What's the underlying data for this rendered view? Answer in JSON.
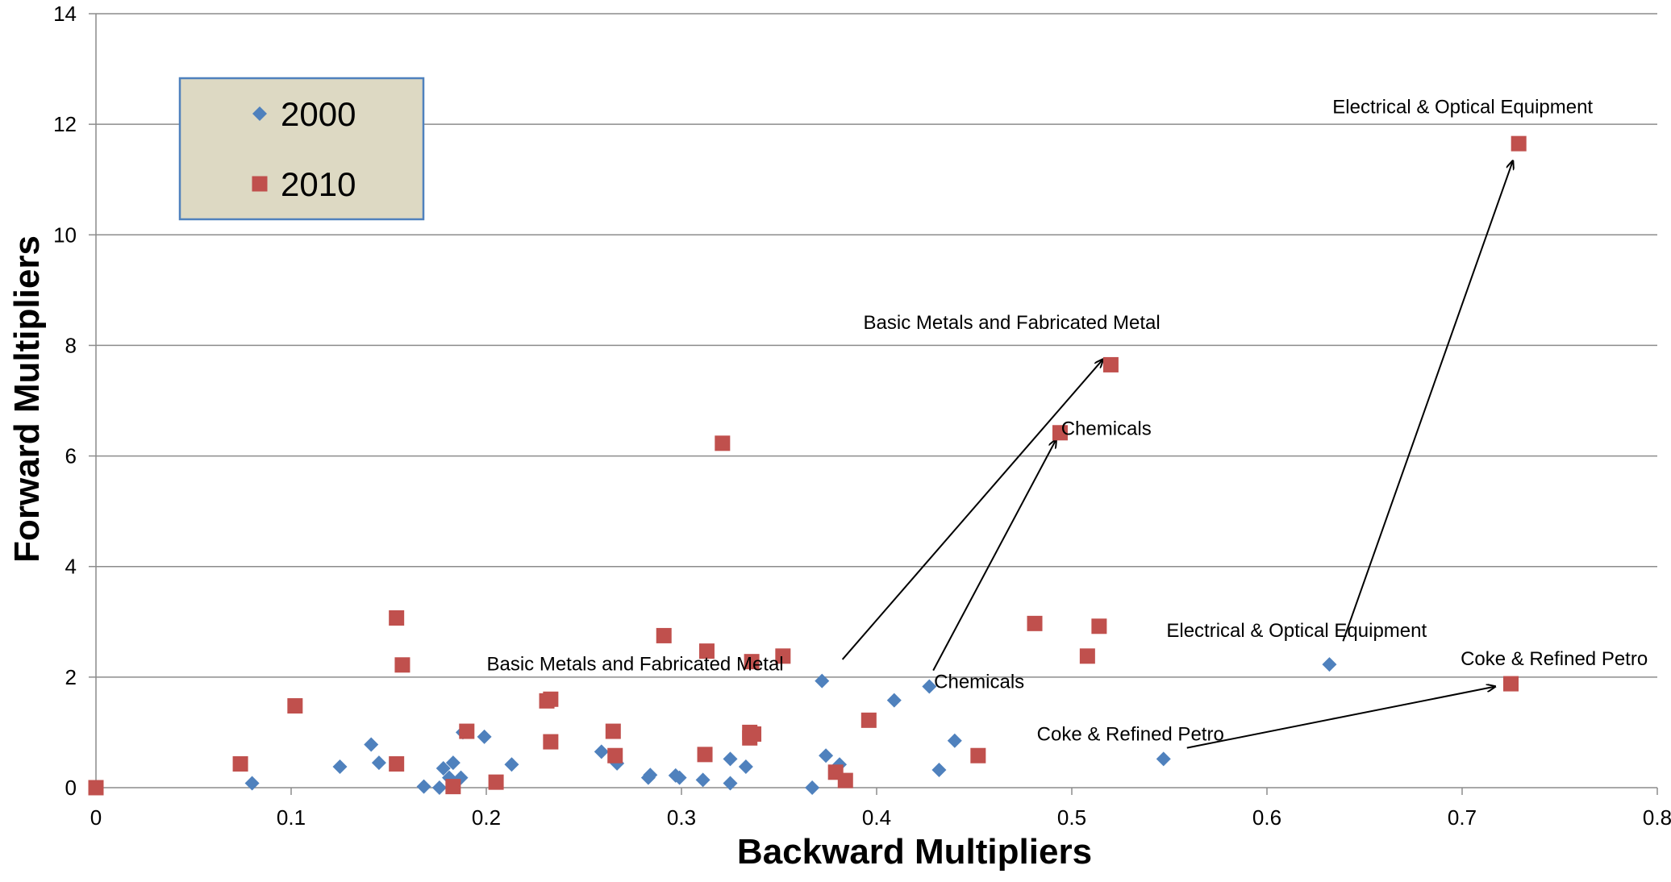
{
  "chart_data": {
    "type": "scatter",
    "title": "",
    "xlabel": "Backward Multipliers",
    "ylabel": "Forward Multipliers",
    "xlim": [
      0,
      0.8
    ],
    "ylim": [
      0,
      14
    ],
    "x_ticks": [
      0,
      0.1,
      0.2,
      0.3,
      0.4,
      0.5,
      0.6,
      0.7,
      0.8
    ],
    "x_tick_labels": [
      "0",
      "0.1",
      "0.2",
      "0.3",
      "0.4",
      "0.5",
      "0.6",
      "0.7",
      "0.8"
    ],
    "y_ticks": [
      0,
      2,
      4,
      6,
      8,
      10,
      12,
      14
    ],
    "y_tick_labels": [
      "0",
      "2",
      "4",
      "6",
      "8",
      "10",
      "12",
      "14"
    ],
    "grid": "horizontal",
    "legend": {
      "placement": "top-left"
    },
    "series": [
      {
        "name": "2000",
        "marker": "diamond",
        "color": "#4F81BD",
        "points": [
          [
            0.08,
            0.08
          ],
          [
            0.125,
            0.38
          ],
          [
            0.141,
            0.78
          ],
          [
            0.145,
            0.45
          ],
          [
            0.168,
            0.02
          ],
          [
            0.176,
            0.0
          ],
          [
            0.178,
            0.35
          ],
          [
            0.181,
            0.18
          ],
          [
            0.183,
            0.45
          ],
          [
            0.187,
            0.18
          ],
          [
            0.188,
            1.0
          ],
          [
            0.199,
            0.92
          ],
          [
            0.213,
            0.42
          ],
          [
            0.259,
            0.65
          ],
          [
            0.267,
            0.44
          ],
          [
            0.283,
            0.18
          ],
          [
            0.284,
            0.23
          ],
          [
            0.297,
            0.22
          ],
          [
            0.299,
            0.18
          ],
          [
            0.311,
            0.14
          ],
          [
            0.325,
            0.08
          ],
          [
            0.325,
            0.52
          ],
          [
            0.333,
            0.38
          ],
          [
            0.367,
            0.0
          ],
          [
            0.372,
            1.93
          ],
          [
            0.374,
            0.58
          ],
          [
            0.381,
            0.42
          ],
          [
            0.409,
            1.58
          ],
          [
            0.427,
            1.83
          ],
          [
            0.432,
            0.32
          ],
          [
            0.44,
            0.85
          ],
          [
            0.547,
            0.52
          ],
          [
            0.632,
            2.23
          ]
        ]
      },
      {
        "name": "2010",
        "marker": "square",
        "color": "#C0504D",
        "points": [
          [
            0.0,
            0.0
          ],
          [
            0.074,
            0.43
          ],
          [
            0.102,
            1.48
          ],
          [
            0.154,
            3.07
          ],
          [
            0.154,
            0.43
          ],
          [
            0.157,
            2.22
          ],
          [
            0.183,
            0.02
          ],
          [
            0.19,
            1.02
          ],
          [
            0.205,
            0.1
          ],
          [
            0.231,
            1.57
          ],
          [
            0.233,
            1.6
          ],
          [
            0.233,
            0.83
          ],
          [
            0.265,
            1.02
          ],
          [
            0.266,
            0.58
          ],
          [
            0.291,
            2.75
          ],
          [
            0.312,
            0.6
          ],
          [
            0.313,
            2.47
          ],
          [
            0.321,
            6.23
          ],
          [
            0.335,
            1.0
          ],
          [
            0.335,
            0.9
          ],
          [
            0.336,
            2.28
          ],
          [
            0.337,
            0.97
          ],
          [
            0.352,
            2.38
          ],
          [
            0.379,
            0.28
          ],
          [
            0.384,
            0.13
          ],
          [
            0.396,
            1.22
          ],
          [
            0.452,
            0.58
          ],
          [
            0.481,
            2.97
          ],
          [
            0.494,
            6.42
          ],
          [
            0.508,
            2.38
          ],
          [
            0.514,
            2.92
          ],
          [
            0.52,
            7.65
          ],
          [
            0.725,
            1.88
          ],
          [
            0.729,
            11.65
          ]
        ]
      }
    ],
    "annotations": [
      {
        "text": "Electrical  & Optical Equipment",
        "x": 0.6336,
        "y": 12.2,
        "anchor": "start"
      },
      {
        "text": "Basic Metals and Fabricated Metal",
        "x": 0.3932,
        "y": 8.3,
        "anchor": "start"
      },
      {
        "text": "Chemicals",
        "x": 0.4945,
        "y": 6.38,
        "anchor": "start"
      },
      {
        "text": "Electrical  & Optical Equipment",
        "x": 0.5485,
        "y": 2.73,
        "anchor": "start"
      },
      {
        "text": "Basic Metals and Fabricated Metal",
        "x": 0.2002,
        "y": 2.12,
        "anchor": "start"
      },
      {
        "text": "Chemicals",
        "x": 0.4294,
        "y": 1.8,
        "anchor": "start"
      },
      {
        "text": "Coke & Refined Petro",
        "x": 0.6992,
        "y": 2.22,
        "anchor": "start"
      },
      {
        "text": "Coke & Refined Petro",
        "x": 0.4821,
        "y": 0.85,
        "anchor": "start"
      }
    ],
    "arrows": [
      {
        "from": [
          0.639,
          2.65
        ],
        "to": [
          0.726,
          11.34
        ]
      },
      {
        "from": [
          0.3825,
          2.32
        ],
        "to": [
          0.516,
          7.75
        ]
      },
      {
        "from": [
          0.429,
          2.12
        ],
        "to": [
          0.492,
          6.3
        ]
      },
      {
        "from": [
          0.559,
          0.72
        ],
        "to": [
          0.717,
          1.83
        ]
      }
    ]
  }
}
